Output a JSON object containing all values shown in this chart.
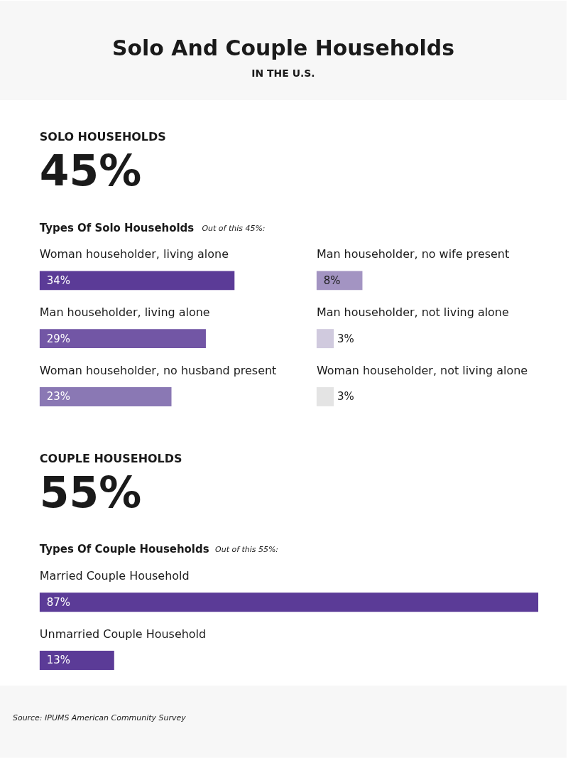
{
  "chart_data": [
    {
      "type": "other",
      "title": "Solo And Couple Households",
      "subtitle": "IN THE U.S."
    },
    {
      "type": "bar",
      "orientation": "horizontal",
      "title": "SOLO HOUSEHOLDS",
      "subtitle": "45%",
      "annotations": [
        "Types Of Solo Households",
        "Out of this 45%:"
      ],
      "categories": [
        "Woman householder, living alone",
        "Man householder, living alone",
        "Woman householder, no husband present"
      ],
      "values": [
        34,
        29,
        23
      ],
      "value_labels": [
        "34%",
        "29%",
        "23%"
      ],
      "colors": [
        "#5b3b97",
        "#7256a5",
        "#8a78b4"
      ]
    },
    {
      "type": "bar",
      "orientation": "horizontal",
      "categories": [
        "Man householder, no wife present",
        "Man householder, not living alone",
        "Woman householder, not living alone"
      ],
      "values": [
        8,
        3,
        3
      ],
      "value_labels": [
        "8%",
        "3%",
        "3%"
      ],
      "colors": [
        "#a394c2",
        "#d0cade",
        "#e4e4e4"
      ]
    },
    {
      "type": "bar",
      "orientation": "horizontal",
      "title": "COUPLE  HOUSEHOLDS",
      "subtitle": "55%",
      "annotations": [
        "Types Of Couple Households",
        "Out of this 55%:"
      ],
      "categories": [
        "Married Couple Household",
        "Unmarried Couple Household"
      ],
      "values": [
        87,
        13
      ],
      "value_labels": [
        "87%",
        "13%"
      ],
      "colors": [
        "#5b3b97",
        "#5b3b97"
      ]
    },
    {
      "type": "other",
      "annotations": [
        "Source: IPUMS American Community Survey"
      ]
    }
  ]
}
